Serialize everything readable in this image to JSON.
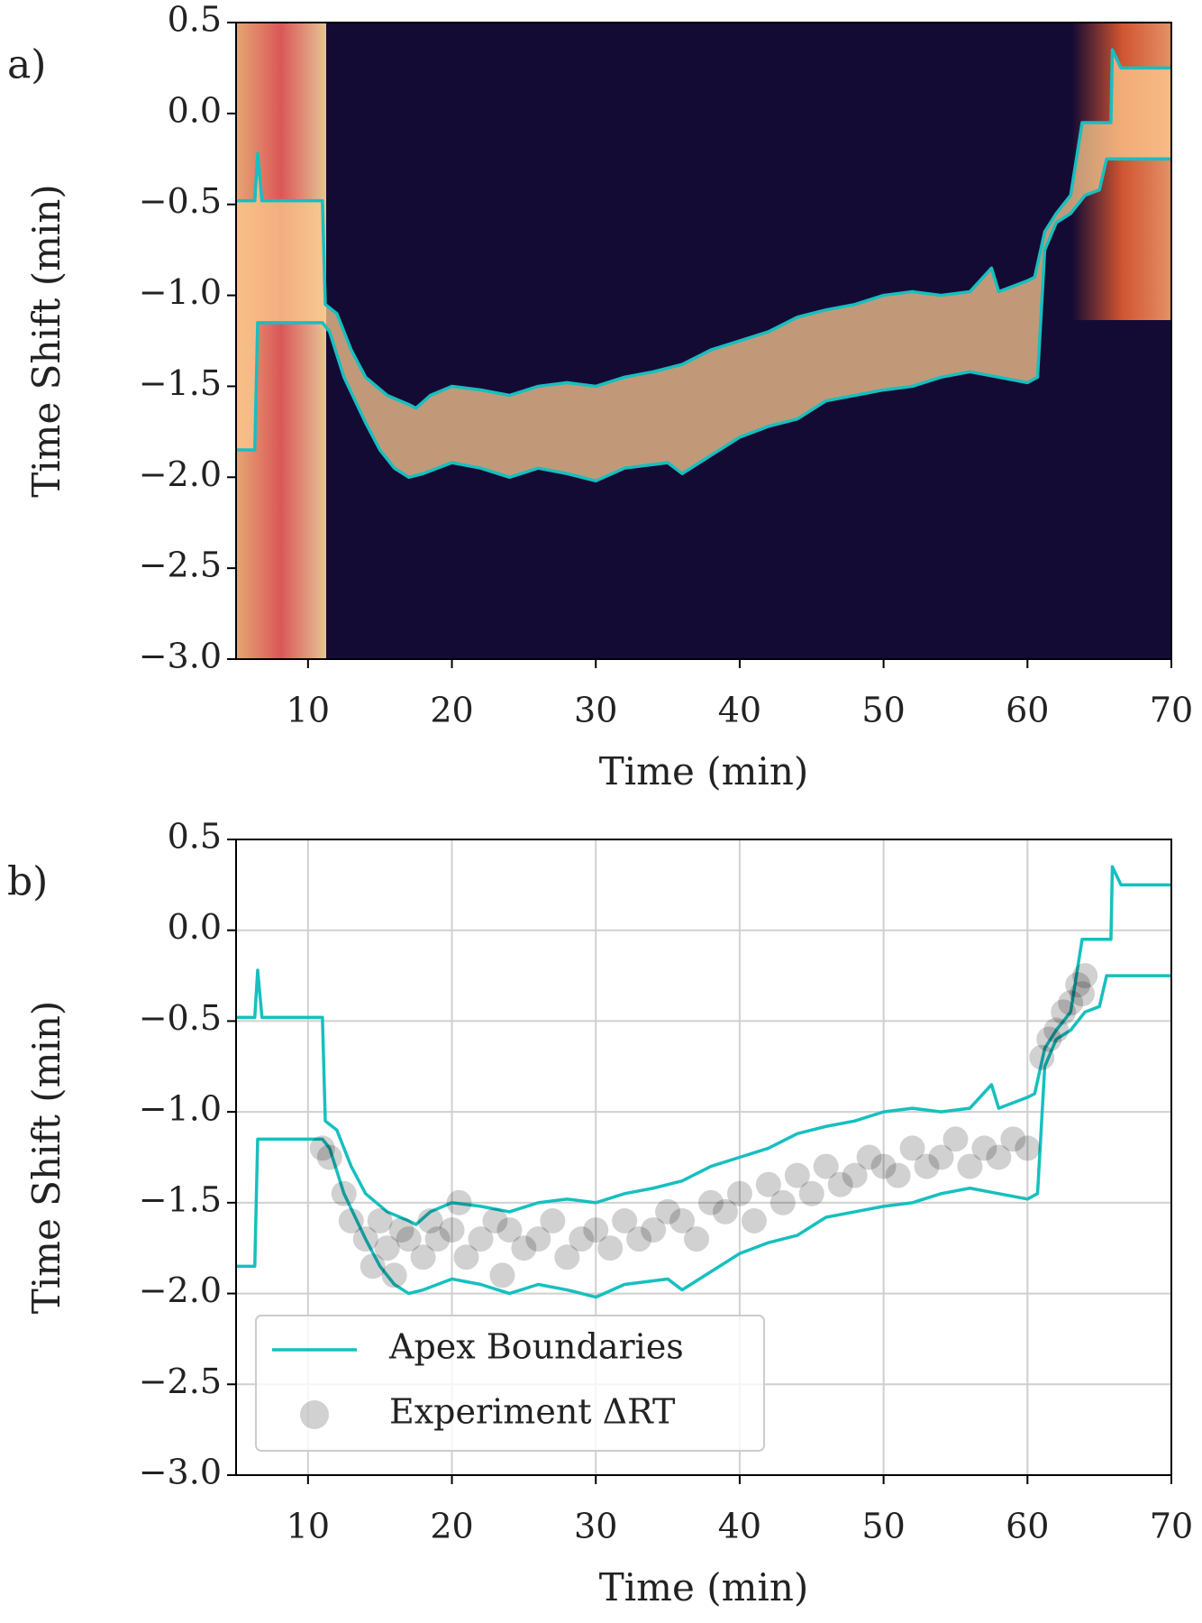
{
  "chart_data": [
    {
      "type": "heatmap",
      "label": "a)",
      "xlabel": "Time (min)",
      "ylabel": "Time Shift (min)",
      "xlim": [
        5,
        70
      ],
      "ylim": [
        -3,
        0.5
      ],
      "xticks": [
        10,
        20,
        30,
        40,
        50,
        60,
        70
      ],
      "yticks": [
        {
          "value": -3,
          "label": "−3.0"
        },
        {
          "value": -2.5,
          "label": "−2.5"
        },
        {
          "value": -2,
          "label": "−2.0"
        },
        {
          "value": -1.5,
          "label": "−1.5"
        },
        {
          "value": -1,
          "label": "−1.0"
        },
        {
          "value": -0.5,
          "label": "−0.5"
        },
        {
          "value": 0,
          "label": "0.0"
        },
        0.5
      ],
      "grid": false,
      "series": [
        {
          "type": "line",
          "color": "#17bfbf",
          "lines": [
            {
              "x": [
                5,
                6.3,
                6.5,
                6.8,
                11,
                11.2,
                12,
                13,
                14,
                15.5,
                17,
                17.5,
                18.5,
                20,
                22,
                24,
                26,
                28,
                30,
                32,
                34,
                36,
                38,
                40,
                42,
                44,
                46,
                48,
                50,
                52,
                54,
                56,
                57.5,
                58,
                60,
                60.5,
                61.2,
                62,
                63,
                63.8,
                65.8,
                65.9,
                66.5,
                70
              ],
              "y": [
                -0.48,
                -0.48,
                -0.22,
                -0.48,
                -0.48,
                -1.05,
                -1.1,
                -1.3,
                -1.45,
                -1.55,
                -1.6,
                -1.62,
                -1.55,
                -1.5,
                -1.52,
                -1.55,
                -1.5,
                -1.48,
                -1.5,
                -1.45,
                -1.42,
                -1.38,
                -1.3,
                -1.25,
                -1.2,
                -1.12,
                -1.08,
                -1.05,
                -1,
                -0.98,
                -1,
                -0.98,
                -0.85,
                -0.98,
                -0.92,
                -0.9,
                -0.65,
                -0.55,
                -0.45,
                -0.05,
                -0.05,
                0.35,
                0.25,
                0.25
              ]
            },
            {
              "x": [
                5,
                6.3,
                6.5,
                11,
                11.5,
                12.5,
                14,
                15,
                16,
                17,
                18,
                20,
                22,
                24,
                26,
                28,
                30,
                32,
                35,
                36,
                38,
                40,
                42,
                44,
                46,
                48,
                50,
                52,
                54,
                56,
                58,
                60,
                60.7,
                61.2,
                62,
                63,
                64,
                65,
                65.5,
                70
              ],
              "y": [
                -1.85,
                -1.85,
                -1.15,
                -1.15,
                -1.2,
                -1.45,
                -1.7,
                -1.85,
                -1.95,
                -2,
                -1.98,
                -1.92,
                -1.95,
                -2,
                -1.95,
                -1.98,
                -2.02,
                -1.95,
                -1.92,
                -1.98,
                -1.88,
                -1.78,
                -1.72,
                -1.68,
                -1.58,
                -1.55,
                -1.52,
                -1.5,
                -1.45,
                -1.42,
                -1.45,
                -1.48,
                -1.45,
                -0.75,
                -0.6,
                -0.55,
                -0.45,
                -0.42,
                -0.25,
                -0.25
              ]
            }
          ]
        }
      ]
    },
    {
      "type": "line",
      "label": "b)",
      "xlabel": "Time (min)",
      "ylabel": "Time Shift (min)",
      "xlim": [
        5,
        70
      ],
      "ylim": [
        -3,
        0.5
      ],
      "xticks": [
        10,
        20,
        30,
        40,
        50,
        60,
        70
      ],
      "yticks": [
        {
          "value": -3,
          "label": "−3.0"
        },
        {
          "value": -2.5,
          "label": "−2.5"
        },
        {
          "value": -2,
          "label": "−2.0"
        },
        {
          "value": -1.5,
          "label": "−1.5"
        },
        {
          "value": -1,
          "label": "−1.0"
        },
        {
          "value": -0.5,
          "label": "−0.5"
        },
        {
          "value": 0,
          "label": "0.0"
        },
        0.5
      ],
      "grid": true,
      "legend": "lower left",
      "series": [
        {
          "type": "line",
          "name": "Apex Boundaries",
          "color": "#17bfbf",
          "lines": [
            {
              "x": [
                5,
                6.3,
                6.5,
                6.8,
                11,
                11.2,
                12,
                13,
                14,
                15.5,
                17,
                17.5,
                18.5,
                20,
                22,
                24,
                26,
                28,
                30,
                32,
                34,
                36,
                38,
                40,
                42,
                44,
                46,
                48,
                50,
                52,
                54,
                56,
                57.5,
                58,
                60,
                60.5,
                61.2,
                62,
                63,
                63.8,
                65.8,
                65.9,
                66.5,
                70
              ],
              "y": [
                -0.48,
                -0.48,
                -0.22,
                -0.48,
                -0.48,
                -1.05,
                -1.1,
                -1.3,
                -1.45,
                -1.55,
                -1.6,
                -1.62,
                -1.55,
                -1.5,
                -1.52,
                -1.55,
                -1.5,
                -1.48,
                -1.5,
                -1.45,
                -1.42,
                -1.38,
                -1.3,
                -1.25,
                -1.2,
                -1.12,
                -1.08,
                -1.05,
                -1,
                -0.98,
                -1,
                -0.98,
                -0.85,
                -0.98,
                -0.92,
                -0.9,
                -0.65,
                -0.55,
                -0.45,
                -0.05,
                -0.05,
                0.35,
                0.25,
                0.25
              ]
            },
            {
              "x": [
                5,
                6.3,
                6.5,
                11,
                11.5,
                12.5,
                14,
                15,
                16,
                17,
                18,
                20,
                22,
                24,
                26,
                28,
                30,
                32,
                35,
                36,
                38,
                40,
                42,
                44,
                46,
                48,
                50,
                52,
                54,
                56,
                58,
                60,
                60.7,
                61.2,
                62,
                63,
                64,
                65,
                65.5,
                70
              ],
              "y": [
                -1.85,
                -1.85,
                -1.15,
                -1.15,
                -1.2,
                -1.45,
                -1.7,
                -1.85,
                -1.95,
                -2,
                -1.98,
                -1.92,
                -1.95,
                -2,
                -1.95,
                -1.98,
                -2.02,
                -1.95,
                -1.92,
                -1.98,
                -1.88,
                -1.78,
                -1.72,
                -1.68,
                -1.58,
                -1.55,
                -1.52,
                -1.5,
                -1.45,
                -1.42,
                -1.45,
                -1.48,
                -1.45,
                -0.75,
                -0.6,
                -0.55,
                -0.45,
                -0.42,
                -0.25,
                -0.25
              ]
            }
          ]
        },
        {
          "type": "scatter",
          "name": "Experiment ΔRT",
          "color": "#000000",
          "x": [
            11,
            11.5,
            12.5,
            13,
            14,
            14.5,
            15,
            15.5,
            16,
            16.5,
            17,
            18,
            18.5,
            19,
            20,
            20.5,
            21,
            22,
            23,
            23.5,
            24,
            25,
            26,
            27,
            28,
            29,
            30,
            31,
            32,
            33,
            34,
            35,
            36,
            37,
            38,
            39,
            40,
            41,
            42,
            43,
            44,
            45,
            46,
            47,
            48,
            49,
            50,
            51,
            52,
            53,
            54,
            55,
            56,
            57,
            58,
            59,
            60,
            61,
            61.5,
            62,
            62.5,
            63,
            63.5,
            64,
            63.8
          ],
          "values": [
            -1.2,
            -1.25,
            -1.45,
            -1.6,
            -1.7,
            -1.85,
            -1.6,
            -1.75,
            -1.9,
            -1.65,
            -1.7,
            -1.8,
            -1.6,
            -1.7,
            -1.65,
            -1.5,
            -1.8,
            -1.7,
            -1.6,
            -1.9,
            -1.65,
            -1.75,
            -1.7,
            -1.6,
            -1.8,
            -1.7,
            -1.65,
            -1.75,
            -1.6,
            -1.7,
            -1.65,
            -1.55,
            -1.6,
            -1.7,
            -1.5,
            -1.55,
            -1.45,
            -1.6,
            -1.4,
            -1.5,
            -1.35,
            -1.45,
            -1.3,
            -1.4,
            -1.35,
            -1.25,
            -1.3,
            -1.35,
            -1.2,
            -1.3,
            -1.25,
            -1.15,
            -1.3,
            -1.2,
            -1.25,
            -1.15,
            -1.2,
            -0.7,
            -0.6,
            -0.55,
            -0.45,
            -0.4,
            -0.3,
            -0.25,
            -0.35
          ]
        }
      ]
    }
  ]
}
